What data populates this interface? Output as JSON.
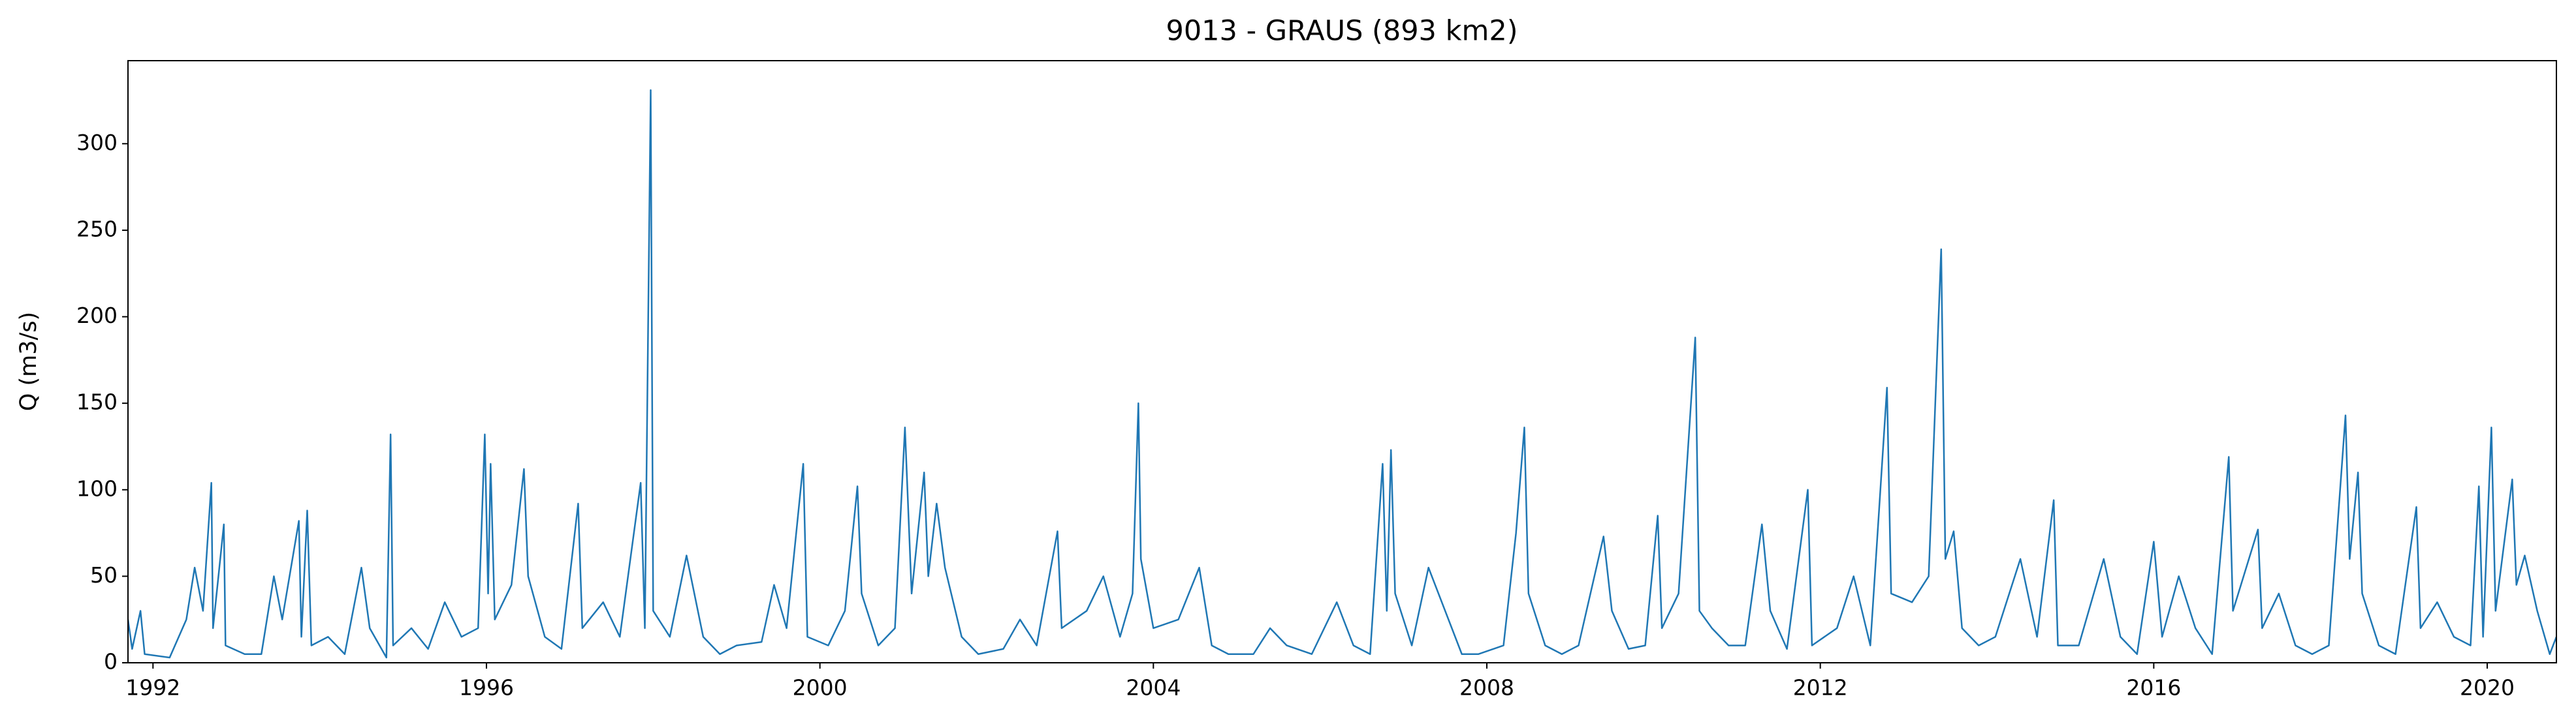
{
  "chart_data": {
    "type": "line",
    "title": "9013 - GRAUS (893 km2)",
    "y_label": "Q (m3/s)",
    "color": "#1f77b4",
    "xlim": [
      1991.7,
      2020.83
    ],
    "xticks": [
      1992,
      1996,
      2000,
      2004,
      2008,
      2012,
      2016,
      2020
    ],
    "ylim": [
      0,
      348
    ],
    "yticks": [
      0,
      50,
      100,
      150,
      200,
      250,
      300
    ],
    "grid": false,
    "x": [
      1991.7,
      1991.75,
      1991.85,
      1991.9,
      1992.2,
      1992.4,
      1992.5,
      1992.6,
      1992.7,
      1992.72,
      1992.85,
      1992.87,
      1993.1,
      1993.3,
      1993.45,
      1993.55,
      1993.75,
      1993.78,
      1993.85,
      1993.9,
      1994.1,
      1994.3,
      1994.5,
      1994.6,
      1994.8,
      1994.85,
      1994.88,
      1995.1,
      1995.3,
      1995.5,
      1995.7,
      1995.9,
      1995.98,
      1996.02,
      1996.05,
      1996.1,
      1996.3,
      1996.45,
      1996.5,
      1996.7,
      1996.9,
      1997.1,
      1997.15,
      1997.4,
      1997.6,
      1997.85,
      1997.9,
      1997.97,
      1998.0,
      1998.2,
      1998.4,
      1998.6,
      1998.8,
      1999.0,
      1999.3,
      1999.45,
      1999.6,
      1999.8,
      1999.85,
      2000.1,
      2000.3,
      2000.45,
      2000.5,
      2000.7,
      2000.9,
      2001.02,
      2001.1,
      2001.25,
      2001.3,
      2001.4,
      2001.5,
      2001.7,
      2001.9,
      2002.2,
      2002.4,
      2002.6,
      2002.85,
      2002.9,
      2003.2,
      2003.4,
      2003.6,
      2003.75,
      2003.82,
      2003.85,
      2004.0,
      2004.3,
      2004.55,
      2004.7,
      2004.9,
      2005.2,
      2005.4,
      2005.6,
      2005.9,
      2006.2,
      2006.4,
      2006.6,
      2006.75,
      2006.8,
      2006.85,
      2006.9,
      2007.1,
      2007.3,
      2007.5,
      2007.7,
      2007.9,
      2008.2,
      2008.35,
      2008.45,
      2008.5,
      2008.7,
      2008.9,
      2009.1,
      2009.4,
      2009.5,
      2009.7,
      2009.9,
      2010.05,
      2010.1,
      2010.3,
      2010.5,
      2010.55,
      2010.7,
      2010.9,
      2011.1,
      2011.3,
      2011.4,
      2011.6,
      2011.85,
      2011.9,
      2012.2,
      2012.4,
      2012.6,
      2012.8,
      2012.85,
      2013.1,
      2013.3,
      2013.45,
      2013.5,
      2013.6,
      2013.7,
      2013.9,
      2014.1,
      2014.4,
      2014.6,
      2014.8,
      2014.85,
      2015.1,
      2015.4,
      2015.6,
      2015.8,
      2016.0,
      2016.1,
      2016.3,
      2016.5,
      2016.7,
      2016.9,
      2016.95,
      2017.25,
      2017.3,
      2017.5,
      2017.7,
      2017.9,
      2018.1,
      2018.3,
      2018.35,
      2018.45,
      2018.5,
      2018.7,
      2018.9,
      2019.15,
      2019.2,
      2019.4,
      2019.6,
      2019.8,
      2019.9,
      2019.95,
      2020.05,
      2020.1,
      2020.3,
      2020.35,
      2020.45,
      2020.6,
      2020.75,
      2020.83
    ],
    "values": [
      25,
      8,
      30,
      5,
      3,
      25,
      55,
      30,
      104,
      20,
      80,
      10,
      5,
      5,
      50,
      25,
      82,
      15,
      88,
      10,
      15,
      5,
      55,
      20,
      3,
      132,
      10,
      20,
      8,
      35,
      15,
      20,
      132,
      40,
      115,
      25,
      45,
      112,
      50,
      15,
      8,
      92,
      20,
      35,
      15,
      104,
      20,
      331,
      30,
      15,
      62,
      15,
      5,
      10,
      12,
      45,
      20,
      115,
      15,
      10,
      30,
      102,
      40,
      10,
      20,
      136,
      40,
      110,
      50,
      92,
      55,
      15,
      5,
      8,
      25,
      10,
      76,
      20,
      30,
      50,
      15,
      40,
      150,
      60,
      20,
      25,
      55,
      10,
      5,
      5,
      20,
      10,
      5,
      35,
      10,
      5,
      115,
      30,
      123,
      40,
      10,
      55,
      30,
      5,
      5,
      10,
      75,
      136,
      40,
      10,
      5,
      10,
      73,
      30,
      8,
      10,
      85,
      20,
      40,
      188,
      30,
      20,
      10,
      10,
      80,
      30,
      8,
      100,
      10,
      20,
      50,
      10,
      159,
      40,
      35,
      50,
      239,
      60,
      76,
      20,
      10,
      15,
      60,
      15,
      94,
      10,
      10,
      60,
      15,
      5,
      70,
      15,
      50,
      20,
      5,
      119,
      30,
      77,
      20,
      40,
      10,
      5,
      10,
      143,
      60,
      110,
      40,
      10,
      5,
      90,
      20,
      35,
      15,
      10,
      102,
      15,
      136,
      30,
      106,
      45,
      62,
      30,
      5,
      15
    ]
  }
}
